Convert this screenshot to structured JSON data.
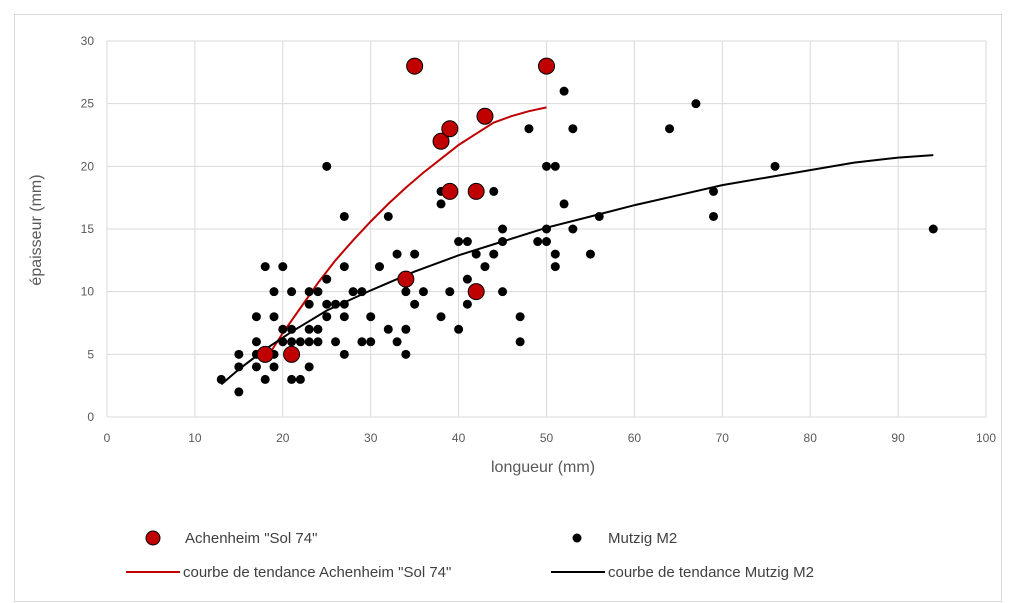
{
  "chart_data": {
    "type": "scatter",
    "xlabel": "longueur (mm)",
    "ylabel": "épaisseur (mm)",
    "xlim": [
      0,
      100
    ],
    "ylim": [
      0,
      30
    ],
    "xticks": [
      0,
      10,
      20,
      30,
      40,
      50,
      60,
      70,
      80,
      90,
      100
    ],
    "yticks": [
      0,
      5,
      10,
      15,
      20,
      25,
      30
    ],
    "grid": true,
    "legend_position": "bottom",
    "series": [
      {
        "name": "Achenheim \"Sol 74\"",
        "color": "#c00000",
        "marker": "circle-large",
        "points": [
          [
            18,
            5
          ],
          [
            21,
            5
          ],
          [
            34,
            11
          ],
          [
            42,
            10
          ],
          [
            38,
            22
          ],
          [
            39,
            23
          ],
          [
            39,
            18
          ],
          [
            42,
            18
          ],
          [
            43,
            24
          ],
          [
            35,
            28
          ],
          [
            50,
            28
          ]
        ]
      },
      {
        "name": "Mutzig M2",
        "color": "#000000",
        "marker": "circle-small",
        "points": [
          [
            13,
            3
          ],
          [
            15,
            2
          ],
          [
            15,
            4
          ],
          [
            15,
            5
          ],
          [
            17,
            4
          ],
          [
            17,
            5
          ],
          [
            17,
            6
          ],
          [
            17,
            8
          ],
          [
            18,
            3
          ],
          [
            18,
            5
          ],
          [
            18,
            12
          ],
          [
            19,
            4
          ],
          [
            19,
            5
          ],
          [
            19,
            8
          ],
          [
            19,
            10
          ],
          [
            20,
            6
          ],
          [
            20,
            7
          ],
          [
            20,
            12
          ],
          [
            21,
            3
          ],
          [
            21,
            6
          ],
          [
            21,
            7
          ],
          [
            21,
            10
          ],
          [
            22,
            3
          ],
          [
            22,
            6
          ],
          [
            23,
            4
          ],
          [
            23,
            6
          ],
          [
            23,
            7
          ],
          [
            23,
            9
          ],
          [
            23,
            10
          ],
          [
            24,
            6
          ],
          [
            24,
            7
          ],
          [
            24,
            10
          ],
          [
            25,
            8
          ],
          [
            25,
            9
          ],
          [
            25,
            11
          ],
          [
            25,
            20
          ],
          [
            26,
            6
          ],
          [
            26,
            9
          ],
          [
            27,
            5
          ],
          [
            27,
            8
          ],
          [
            27,
            9
          ],
          [
            27,
            12
          ],
          [
            27,
            16
          ],
          [
            28,
            10
          ],
          [
            29,
            6
          ],
          [
            29,
            10
          ],
          [
            30,
            6
          ],
          [
            30,
            8
          ],
          [
            31,
            12
          ],
          [
            32,
            7
          ],
          [
            32,
            16
          ],
          [
            33,
            6
          ],
          [
            33,
            13
          ],
          [
            34,
            5
          ],
          [
            34,
            7
          ],
          [
            34,
            10
          ],
          [
            35,
            9
          ],
          [
            35,
            13
          ],
          [
            36,
            10
          ],
          [
            38,
            8
          ],
          [
            38,
            17
          ],
          [
            38,
            18
          ],
          [
            39,
            10
          ],
          [
            40,
            7
          ],
          [
            40,
            14
          ],
          [
            41,
            9
          ],
          [
            41,
            11
          ],
          [
            41,
            14
          ],
          [
            42,
            13
          ],
          [
            43,
            12
          ],
          [
            44,
            13
          ],
          [
            44,
            18
          ],
          [
            45,
            10
          ],
          [
            45,
            14
          ],
          [
            45,
            15
          ],
          [
            47,
            6
          ],
          [
            47,
            8
          ],
          [
            48,
            23
          ],
          [
            49,
            14
          ],
          [
            50,
            14
          ],
          [
            50,
            15
          ],
          [
            50,
            20
          ],
          [
            51,
            12
          ],
          [
            51,
            13
          ],
          [
            51,
            20
          ],
          [
            52,
            17
          ],
          [
            52,
            26
          ],
          [
            53,
            15
          ],
          [
            53,
            23
          ],
          [
            55,
            13
          ],
          [
            56,
            16
          ],
          [
            64,
            23
          ],
          [
            67,
            25
          ],
          [
            69,
            16
          ],
          [
            69,
            18
          ],
          [
            76,
            20
          ],
          [
            94,
            15
          ]
        ]
      }
    ],
    "trendlines": [
      {
        "name": "courbe de tendance Achenheim \"Sol 74\"",
        "color": "#c00000",
        "points": [
          [
            18,
            4.5
          ],
          [
            20,
            6.7
          ],
          [
            22,
            8.7
          ],
          [
            24,
            10.7
          ],
          [
            26,
            12.5
          ],
          [
            28,
            14.1
          ],
          [
            30,
            15.6
          ],
          [
            32,
            17.0
          ],
          [
            34,
            18.3
          ],
          [
            36,
            19.5
          ],
          [
            38,
            20.6
          ],
          [
            40,
            21.7
          ],
          [
            42,
            22.6
          ],
          [
            44,
            23.5
          ],
          [
            46,
            24.0
          ],
          [
            48,
            24.4
          ],
          [
            50,
            24.7
          ]
        ]
      },
      {
        "name": "courbe de tendance Mutzig M2",
        "color": "#000000",
        "points": [
          [
            13,
            2.6
          ],
          [
            15,
            3.8
          ],
          [
            18,
            5.4
          ],
          [
            21,
            6.8
          ],
          [
            25,
            8.5
          ],
          [
            30,
            10.1
          ],
          [
            35,
            11.6
          ],
          [
            40,
            12.9
          ],
          [
            45,
            14.0
          ],
          [
            50,
            15.1
          ],
          [
            55,
            16.0
          ],
          [
            60,
            16.9
          ],
          [
            65,
            17.7
          ],
          [
            70,
            18.5
          ],
          [
            75,
            19.1
          ],
          [
            80,
            19.7
          ],
          [
            85,
            20.3
          ],
          [
            90,
            20.7
          ],
          [
            94,
            20.9
          ]
        ]
      }
    ]
  }
}
